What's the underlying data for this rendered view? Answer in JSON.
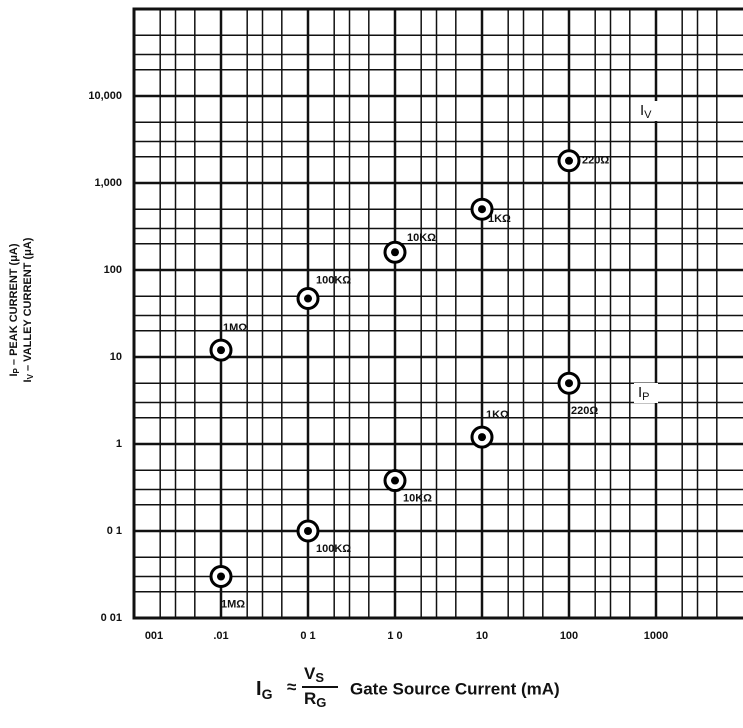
{
  "chart_data": {
    "type": "scatter",
    "xscale": "log",
    "yscale": "log",
    "grid": true,
    "color": "#000000",
    "x": [
      0.01,
      0.1,
      1,
      10,
      100
    ],
    "series": [
      {
        "values": [
          12,
          47,
          160,
          500,
          1800
        ],
        "point_labels": [
          "1MΩ",
          "100KΩ",
          "10KΩ",
          "1KΩ",
          "220Ω"
        ],
        "tag": {
          "main": "I",
          "sub": "V"
        }
      },
      {
        "values": [
          0.03,
          0.1,
          0.38,
          1.2,
          5
        ],
        "point_labels": [
          "1MΩ",
          "100KΩ",
          "10KΩ",
          "1KΩ",
          "220Ω"
        ],
        "tag": {
          "main": "I",
          "sub": "P"
        }
      }
    ],
    "xlim": [
      0.001,
      10000
    ],
    "ylim": [
      0.01,
      100000
    ],
    "xticks": [
      {
        "value": 0.001,
        "label": "001"
      },
      {
        "value": 0.01,
        "label": ".01"
      },
      {
        "value": 0.1,
        "label": "0 1"
      },
      {
        "value": 1,
        "label": "1 0"
      },
      10,
      100,
      1000
    ],
    "yticks": [
      {
        "value": 0.01,
        "label": "0 01"
      },
      {
        "value": 0.1,
        "label": "0 1"
      },
      1,
      10,
      100,
      {
        "value": 1000,
        "label": "1,000"
      },
      {
        "value": 10000,
        "label": "10,000"
      }
    ],
    "y_label": [
      {
        "main": "I",
        "sub": "P",
        "text": " – PEAK CURRENT (μA)"
      },
      {
        "main": "I",
        "sub": "V",
        "text": " – VALLEY CURRENT (μA)"
      }
    ],
    "x_label": {
      "main": "I",
      "sub": "G",
      "approx": "≈",
      "num": "V",
      "num_sub": "S",
      "den": "R",
      "den_sub": "G",
      "text": "Gate Source Current (mA)"
    }
  }
}
